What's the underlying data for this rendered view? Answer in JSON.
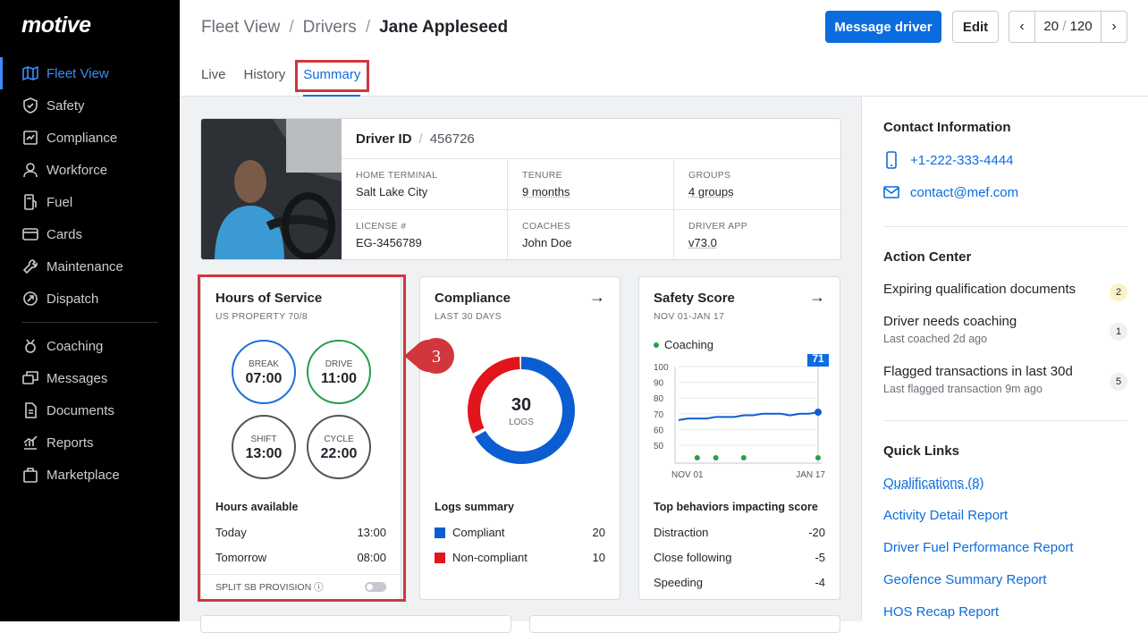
{
  "app": {
    "logo": "motive"
  },
  "sidebar": {
    "items": [
      {
        "label": "Fleet View",
        "icon": "map-icon",
        "active": true
      },
      {
        "label": "Safety",
        "icon": "shield-icon"
      },
      {
        "label": "Compliance",
        "icon": "compliance-icon"
      },
      {
        "label": "Workforce",
        "icon": "person-icon"
      },
      {
        "label": "Fuel",
        "icon": "fuel-icon"
      },
      {
        "label": "Cards",
        "icon": "card-icon"
      },
      {
        "label": "Maintenance",
        "icon": "wrench-icon"
      },
      {
        "label": "Dispatch",
        "icon": "dispatch-icon"
      }
    ],
    "items2": [
      {
        "label": "Coaching",
        "icon": "coaching-icon"
      },
      {
        "label": "Messages",
        "icon": "messages-icon"
      },
      {
        "label": "Documents",
        "icon": "document-icon"
      },
      {
        "label": "Reports",
        "icon": "reports-icon"
      },
      {
        "label": "Marketplace",
        "icon": "bag-icon"
      }
    ]
  },
  "header": {
    "breadcrumb": [
      "Fleet View",
      "Drivers",
      "Jane Appleseed"
    ],
    "message_button": "Message driver",
    "edit_button": "Edit",
    "pager": {
      "current": "20",
      "sep": "/",
      "total": "120"
    },
    "tabs": [
      "Live",
      "History",
      "Summary"
    ]
  },
  "driver": {
    "id_label": "Driver ID",
    "id_value": "456726",
    "fields": [
      {
        "label": "HOME TERMINAL",
        "value": "Salt Lake City"
      },
      {
        "label": "TENURE",
        "value": "9 months"
      },
      {
        "label": "GROUPS",
        "value": "4 groups"
      },
      {
        "label": "LICENSE #",
        "value": "EG-3456789"
      },
      {
        "label": "COACHES",
        "value": "John Doe"
      },
      {
        "label": "DRIVER APP",
        "value": "v73.0"
      }
    ]
  },
  "hos": {
    "title": "Hours of Service",
    "subtitle": "US PROPERTY 70/8",
    "rings": [
      {
        "label": "BREAK",
        "value": "07:00",
        "color": "#1e6fd9"
      },
      {
        "label": "DRIVE",
        "value": "11:00",
        "color": "#22a04b"
      },
      {
        "label": "SHIFT",
        "value": "13:00",
        "color": "#555a60"
      },
      {
        "label": "CYCLE",
        "value": "22:00",
        "color": "#555a60"
      }
    ],
    "available_title": "Hours available",
    "rows": [
      {
        "label": "Today",
        "value": "13:00"
      },
      {
        "label": "Tomorrow",
        "value": "08:00"
      }
    ],
    "footer": "SPLIT SB PROVISION"
  },
  "annotation": {
    "number": "3"
  },
  "compliance": {
    "title": "Compliance",
    "subtitle": "LAST 30 DAYS",
    "center_value": "30",
    "center_label": "LOGS",
    "summary_title": "Logs summary",
    "rows": [
      {
        "label": "Compliant",
        "value": "20",
        "color": "#0b5ed1"
      },
      {
        "label": "Non-compliant",
        "value": "10",
        "color": "#e2141c"
      }
    ]
  },
  "safety": {
    "title": "Safety Score",
    "subtitle": "NOV 01-JAN 17",
    "legend": "Coaching",
    "score_badge": "71",
    "behaviors_title": "Top behaviors impacting score",
    "rows": [
      {
        "label": "Distraction",
        "value": "-20"
      },
      {
        "label": "Close following",
        "value": "-5"
      },
      {
        "label": "Speeding",
        "value": "-4"
      }
    ]
  },
  "chart_data": {
    "type": "line",
    "x_labels": [
      "NOV 01",
      "JAN 17"
    ],
    "y_ticks": [
      100,
      90,
      80,
      70,
      60,
      50
    ],
    "ylim": [
      50,
      100
    ],
    "values": [
      66,
      67,
      67,
      67,
      68,
      68,
      68,
      69,
      69,
      70,
      70,
      70,
      69,
      70,
      70,
      71
    ],
    "coaching_points": [
      2,
      4,
      7,
      15
    ],
    "color": "#0b5ed1"
  },
  "right": {
    "contact_title": "Contact Information",
    "phone": "+1-222-333-4444",
    "email": "contact@mef.com",
    "action_title": "Action Center",
    "actions": [
      {
        "title": "Expiring qualification documents",
        "sub": "",
        "count": "2"
      },
      {
        "title": "Driver needs coaching",
        "sub": "Last coached 2d ago",
        "count": "1"
      },
      {
        "title": "Flagged transactions in last 30d",
        "sub": "Last flagged transaction 9m ago",
        "count": "5"
      }
    ],
    "links_title": "Quick Links",
    "links": [
      "Qualifications (8)",
      "Activity Detail Report",
      "Driver Fuel Performance Report",
      "Geofence Summary Report",
      "HOS Recap Report"
    ]
  }
}
